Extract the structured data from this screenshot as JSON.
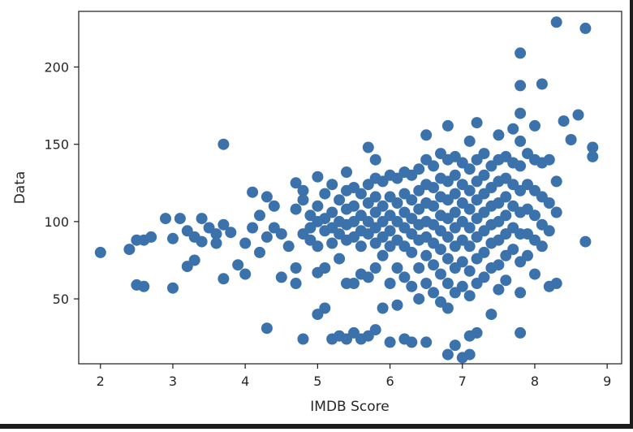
{
  "chart_data": {
    "type": "scatter",
    "title": "",
    "xlabel": "IMDB Score",
    "ylabel": "Data",
    "xlim": [
      1.7,
      9.2
    ],
    "ylim": [
      8,
      236
    ],
    "xticks": [
      2,
      3,
      4,
      5,
      6,
      7,
      8,
      9
    ],
    "yticks": [
      50,
      100,
      150,
      200
    ],
    "grid": false,
    "legend": "none",
    "marker_color": "#3c72ab",
    "points": [
      [
        2.0,
        80
      ],
      [
        2.4,
        82
      ],
      [
        2.5,
        88
      ],
      [
        2.6,
        88
      ],
      [
        2.7,
        90
      ],
      [
        2.9,
        102
      ],
      [
        3.1,
        102
      ],
      [
        3.0,
        89
      ],
      [
        2.5,
        59
      ],
      [
        2.6,
        58
      ],
      [
        3.0,
        57
      ],
      [
        3.2,
        71
      ],
      [
        3.3,
        75
      ],
      [
        3.2,
        94
      ],
      [
        3.3,
        90
      ],
      [
        3.4,
        87
      ],
      [
        3.4,
        102
      ],
      [
        3.5,
        96
      ],
      [
        3.6,
        86
      ],
      [
        3.6,
        92
      ],
      [
        3.7,
        98
      ],
      [
        3.7,
        150
      ],
      [
        3.7,
        63
      ],
      [
        3.8,
        93
      ],
      [
        3.9,
        72
      ],
      [
        4.0,
        66
      ],
      [
        4.0,
        86
      ],
      [
        4.1,
        119
      ],
      [
        4.1,
        96
      ],
      [
        4.2,
        104
      ],
      [
        4.2,
        80
      ],
      [
        4.3,
        116
      ],
      [
        4.3,
        90
      ],
      [
        4.3,
        31
      ],
      [
        4.4,
        110
      ],
      [
        4.4,
        96
      ],
      [
        4.5,
        92
      ],
      [
        4.5,
        64
      ],
      [
        4.6,
        84
      ],
      [
        4.7,
        125
      ],
      [
        4.7,
        108
      ],
      [
        4.7,
        70
      ],
      [
        4.7,
        60
      ],
      [
        4.8,
        120
      ],
      [
        4.8,
        114
      ],
      [
        4.8,
        92
      ],
      [
        4.8,
        24
      ],
      [
        4.9,
        104
      ],
      [
        4.9,
        96
      ],
      [
        4.9,
        88
      ],
      [
        5.0,
        129
      ],
      [
        5.0,
        110
      ],
      [
        5.0,
        100
      ],
      [
        5.0,
        84
      ],
      [
        5.0,
        67
      ],
      [
        5.0,
        40
      ],
      [
        5.1,
        118
      ],
      [
        5.1,
        102
      ],
      [
        5.1,
        94
      ],
      [
        5.1,
        70
      ],
      [
        5.1,
        44
      ],
      [
        5.2,
        124
      ],
      [
        5.2,
        106
      ],
      [
        5.2,
        96
      ],
      [
        5.2,
        86
      ],
      [
        5.2,
        24
      ],
      [
        5.3,
        114
      ],
      [
        5.3,
        100
      ],
      [
        5.3,
        92
      ],
      [
        5.3,
        76
      ],
      [
        5.3,
        26
      ],
      [
        5.4,
        132
      ],
      [
        5.4,
        120
      ],
      [
        5.4,
        108
      ],
      [
        5.4,
        98
      ],
      [
        5.4,
        88
      ],
      [
        5.4,
        60
      ],
      [
        5.4,
        24
      ],
      [
        5.5,
        122
      ],
      [
        5.5,
        110
      ],
      [
        5.5,
        100
      ],
      [
        5.5,
        90
      ],
      [
        5.5,
        60
      ],
      [
        5.5,
        28
      ],
      [
        5.6,
        118
      ],
      [
        5.6,
        104
      ],
      [
        5.6,
        94
      ],
      [
        5.6,
        84
      ],
      [
        5.6,
        66
      ],
      [
        5.6,
        24
      ],
      [
        5.7,
        148
      ],
      [
        5.7,
        124
      ],
      [
        5.7,
        112
      ],
      [
        5.7,
        100
      ],
      [
        5.7,
        92
      ],
      [
        5.7,
        64
      ],
      [
        5.7,
        26
      ],
      [
        5.8,
        140
      ],
      [
        5.8,
        128
      ],
      [
        5.8,
        116
      ],
      [
        5.8,
        106
      ],
      [
        5.8,
        96
      ],
      [
        5.8,
        86
      ],
      [
        5.8,
        70
      ],
      [
        5.8,
        30
      ],
      [
        5.9,
        126
      ],
      [
        5.9,
        110
      ],
      [
        5.9,
        100
      ],
      [
        5.9,
        90
      ],
      [
        5.9,
        78
      ],
      [
        5.9,
        44
      ],
      [
        6.0,
        130
      ],
      [
        6.0,
        116
      ],
      [
        6.0,
        104
      ],
      [
        6.0,
        94
      ],
      [
        6.0,
        84
      ],
      [
        6.0,
        60
      ],
      [
        6.0,
        22
      ],
      [
        6.1,
        128
      ],
      [
        6.1,
        112
      ],
      [
        6.1,
        100
      ],
      [
        6.1,
        88
      ],
      [
        6.1,
        70
      ],
      [
        6.1,
        46
      ],
      [
        6.2,
        132
      ],
      [
        6.2,
        118
      ],
      [
        6.2,
        106
      ],
      [
        6.2,
        96
      ],
      [
        6.2,
        84
      ],
      [
        6.2,
        64
      ],
      [
        6.2,
        24
      ],
      [
        6.3,
        130
      ],
      [
        6.3,
        114
      ],
      [
        6.3,
        102
      ],
      [
        6.3,
        92
      ],
      [
        6.3,
        80
      ],
      [
        6.3,
        58
      ],
      [
        6.3,
        22
      ],
      [
        6.4,
        134
      ],
      [
        6.4,
        120
      ],
      [
        6.4,
        108
      ],
      [
        6.4,
        98
      ],
      [
        6.4,
        88
      ],
      [
        6.4,
        70
      ],
      [
        6.4,
        50
      ],
      [
        6.5,
        156
      ],
      [
        6.5,
        140
      ],
      [
        6.5,
        124
      ],
      [
        6.5,
        112
      ],
      [
        6.5,
        100
      ],
      [
        6.5,
        90
      ],
      [
        6.5,
        78
      ],
      [
        6.5,
        60
      ],
      [
        6.5,
        22
      ],
      [
        6.6,
        136
      ],
      [
        6.6,
        122
      ],
      [
        6.6,
        110
      ],
      [
        6.6,
        98
      ],
      [
        6.6,
        86
      ],
      [
        6.6,
        72
      ],
      [
        6.6,
        54
      ],
      [
        6.7,
        144
      ],
      [
        6.7,
        128
      ],
      [
        6.7,
        116
      ],
      [
        6.7,
        104
      ],
      [
        6.7,
        94
      ],
      [
        6.7,
        82
      ],
      [
        6.7,
        66
      ],
      [
        6.7,
        48
      ],
      [
        6.8,
        162
      ],
      [
        6.8,
        140
      ],
      [
        6.8,
        126
      ],
      [
        6.8,
        114
      ],
      [
        6.8,
        102
      ],
      [
        6.8,
        90
      ],
      [
        6.8,
        76
      ],
      [
        6.8,
        60
      ],
      [
        6.8,
        44
      ],
      [
        6.8,
        14
      ],
      [
        6.9,
        142
      ],
      [
        6.9,
        130
      ],
      [
        6.9,
        118
      ],
      [
        6.9,
        106
      ],
      [
        6.9,
        96
      ],
      [
        6.9,
        84
      ],
      [
        6.9,
        70
      ],
      [
        6.9,
        54
      ],
      [
        6.9,
        20
      ],
      [
        7.0,
        138
      ],
      [
        7.0,
        124
      ],
      [
        7.0,
        112
      ],
      [
        7.0,
        100
      ],
      [
        7.0,
        88
      ],
      [
        7.0,
        74
      ],
      [
        7.0,
        58
      ],
      [
        7.0,
        12
      ],
      [
        7.1,
        152
      ],
      [
        7.1,
        134
      ],
      [
        7.1,
        120
      ],
      [
        7.1,
        108
      ],
      [
        7.1,
        96
      ],
      [
        7.1,
        84
      ],
      [
        7.1,
        68
      ],
      [
        7.1,
        52
      ],
      [
        7.1,
        26
      ],
      [
        7.1,
        14
      ],
      [
        7.2,
        164
      ],
      [
        7.2,
        140
      ],
      [
        7.2,
        126
      ],
      [
        7.2,
        114
      ],
      [
        7.2,
        102
      ],
      [
        7.2,
        90
      ],
      [
        7.2,
        76
      ],
      [
        7.2,
        60
      ],
      [
        7.2,
        28
      ],
      [
        7.3,
        144
      ],
      [
        7.3,
        130
      ],
      [
        7.3,
        118
      ],
      [
        7.3,
        106
      ],
      [
        7.3,
        94
      ],
      [
        7.3,
        80
      ],
      [
        7.3,
        64
      ],
      [
        7.4,
        136
      ],
      [
        7.4,
        122
      ],
      [
        7.4,
        110
      ],
      [
        7.4,
        98
      ],
      [
        7.4,
        86
      ],
      [
        7.4,
        70
      ],
      [
        7.4,
        40
      ],
      [
        7.5,
        156
      ],
      [
        7.5,
        140
      ],
      [
        7.5,
        126
      ],
      [
        7.5,
        112
      ],
      [
        7.5,
        100
      ],
      [
        7.5,
        88
      ],
      [
        7.5,
        72
      ],
      [
        7.5,
        56
      ],
      [
        7.6,
        142
      ],
      [
        7.6,
        128
      ],
      [
        7.6,
        116
      ],
      [
        7.6,
        104
      ],
      [
        7.6,
        92
      ],
      [
        7.6,
        78
      ],
      [
        7.6,
        62
      ],
      [
        7.7,
        160
      ],
      [
        7.7,
        138
      ],
      [
        7.7,
        124
      ],
      [
        7.7,
        110
      ],
      [
        7.7,
        96
      ],
      [
        7.7,
        82
      ],
      [
        7.8,
        209
      ],
      [
        7.8,
        188
      ],
      [
        7.8,
        170
      ],
      [
        7.8,
        152
      ],
      [
        7.8,
        136
      ],
      [
        7.8,
        120
      ],
      [
        7.8,
        106
      ],
      [
        7.8,
        92
      ],
      [
        7.8,
        74
      ],
      [
        7.8,
        54
      ],
      [
        7.8,
        28
      ],
      [
        7.9,
        144
      ],
      [
        7.9,
        124
      ],
      [
        7.9,
        108
      ],
      [
        7.9,
        92
      ],
      [
        7.9,
        78
      ],
      [
        8.0,
        162
      ],
      [
        8.0,
        140
      ],
      [
        8.0,
        120
      ],
      [
        8.0,
        104
      ],
      [
        8.0,
        88
      ],
      [
        8.0,
        66
      ],
      [
        8.1,
        189
      ],
      [
        8.1,
        138
      ],
      [
        8.1,
        116
      ],
      [
        8.1,
        98
      ],
      [
        8.1,
        84
      ],
      [
        8.2,
        140
      ],
      [
        8.2,
        112
      ],
      [
        8.2,
        94
      ],
      [
        8.2,
        58
      ],
      [
        8.3,
        229
      ],
      [
        8.3,
        126
      ],
      [
        8.3,
        106
      ],
      [
        8.3,
        60
      ],
      [
        8.4,
        165
      ],
      [
        8.5,
        153
      ],
      [
        8.6,
        169
      ],
      [
        8.7,
        225
      ],
      [
        8.7,
        87
      ],
      [
        8.8,
        148
      ],
      [
        8.8,
        142
      ]
    ]
  }
}
